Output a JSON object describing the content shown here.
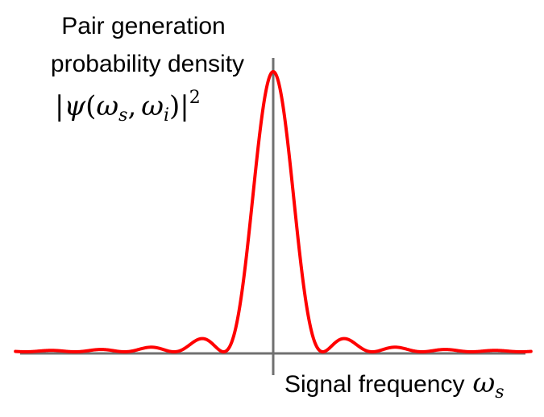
{
  "chart_data": {
    "type": "line",
    "ylabel_lines": [
      "Pair generation",
      "probability density"
    ],
    "ylabel_math": {
      "bar_left": "|",
      "psi": "ψ",
      "open_paren": "(",
      "omega_s": "ω",
      "sub_s": "s",
      "comma": ",",
      "omega_i": "ω",
      "sub_i": "i",
      "close_paren": ")",
      "bar_right": "|",
      "exponent": "2"
    },
    "xlabel": "Signal frequency",
    "xlabel_symbol": "ω",
    "xlabel_subscript": "s",
    "series": [
      {
        "function": "sinc^2",
        "color": "#ff0000",
        "peak_x": 0,
        "peak_value": 1,
        "zeros_x": [
          -1,
          -2,
          -3,
          -4,
          -5,
          1,
          2,
          3,
          4,
          5
        ],
        "x_range": [
          -5.2,
          5.2
        ]
      }
    ],
    "axis_color": "#707070",
    "ticks": false,
    "grid": false
  }
}
